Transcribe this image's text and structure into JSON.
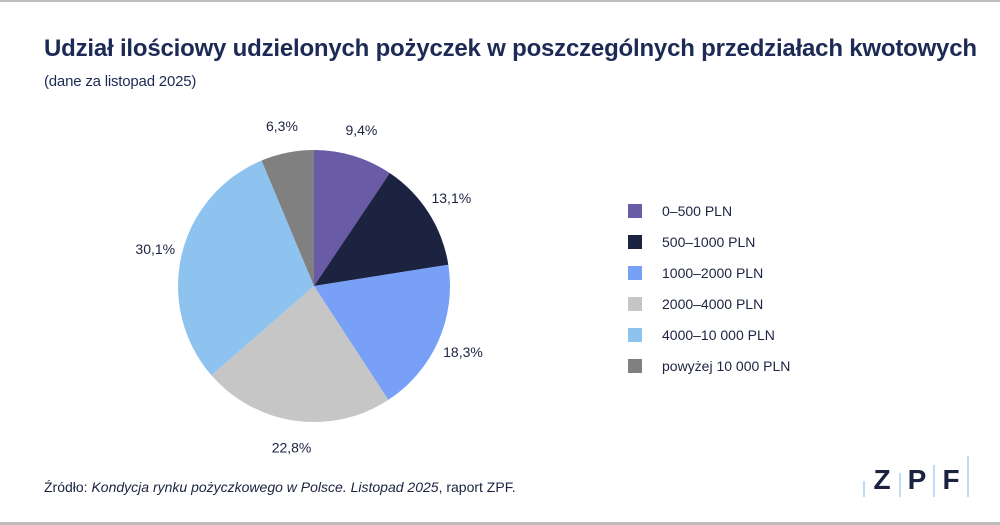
{
  "title": "Udział ilościowy udzielonych pożyczek w poszczególnych przedziałach kwotowych",
  "subtitle": "(dane za listopad 2025)",
  "chart_data": {
    "type": "pie",
    "start_angle": "12 o'clock",
    "direction": "clockwise",
    "legend_placement": "right",
    "slices": [
      {
        "name": "0–500 PLN",
        "value": 9.4,
        "label": "9,4%",
        "color": "#6a5ba6"
      },
      {
        "name": "500–1000 PLN",
        "value": 13.1,
        "label": "13,1%",
        "color": "#1c2340"
      },
      {
        "name": "1000–2000 PLN",
        "value": 18.3,
        "label": "18,3%",
        "color": "#78a0f7"
      },
      {
        "name": "2000–4000 PLN",
        "value": 22.8,
        "label": "22,8%",
        "color": "#c6c6c6"
      },
      {
        "name": "4000–10 000 PLN",
        "value": 30.1,
        "label": "30,1%",
        "color": "#8ec3f0"
      },
      {
        "name": "powyżej 10 000 PLN",
        "value": 6.3,
        "label": "6,3%",
        "color": "#808080"
      }
    ]
  },
  "source": {
    "prefix": "Źródło: ",
    "italic": "Kondycja rynku pożyczkowego w Polsce. Listopad 2025",
    "suffix": ", raport ZPF."
  },
  "logo": {
    "text": "ZPF",
    "letters": [
      "Z",
      "P",
      "F"
    ]
  }
}
